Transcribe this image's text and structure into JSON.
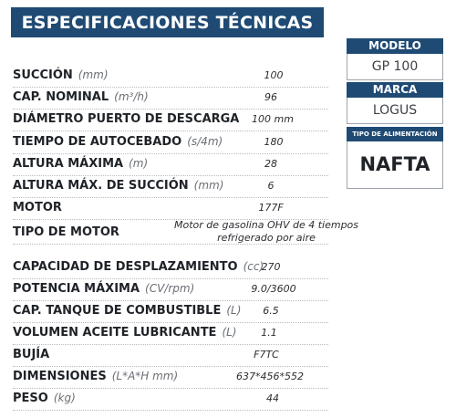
{
  "header": {
    "title": "ESPECIFICACIONES TÉCNICAS"
  },
  "specs": [
    {
      "label": "SUCCIÓN",
      "unit": "(mm)",
      "value": "100"
    },
    {
      "label": "CAP. NOMINAL",
      "unit": "(m³/h)",
      "value": "96"
    },
    {
      "label": "DIÁMETRO PUERTO DE DESCARGA",
      "unit": "",
      "value": "100 mm"
    },
    {
      "label": "TIEMPO DE AUTOCEBADO",
      "unit": "(s/4m)",
      "value": "180"
    },
    {
      "label": "ALTURA MÁXIMA",
      "unit": "(m)",
      "value": "28"
    },
    {
      "label": "ALTURA MÁX. DE SUCCIÓN",
      "unit": "(mm)",
      "value": "6"
    },
    {
      "label": "MOTOR",
      "unit": "",
      "value": "177F"
    },
    {
      "label": "TIPO DE MOTOR",
      "unit": "",
      "value": "Motor de gasolina OHV de 4 tiempos refrigerado por aire"
    },
    {
      "label": "CAPACIDAD DE DESPLAZAMIENTO",
      "unit": "(cc)",
      "value": "270"
    },
    {
      "label": "POTENCIA MÁXIMA",
      "unit": "(CV/rpm)",
      "value": "9.0/3600"
    },
    {
      "label": "CAP. TANQUE DE COMBUSTIBLE",
      "unit": "(L)",
      "value": "6.5"
    },
    {
      "label": "VOLUMEN ACEITE LUBRICANTE",
      "unit": "(L)",
      "value": "1.1"
    },
    {
      "label": "BUJÍA",
      "unit": "",
      "value": "F7TC"
    },
    {
      "label": "DIMENSIONES",
      "unit": "(L*A*H mm)",
      "value": "637*456*552"
    },
    {
      "label": "PESO",
      "unit": "(kg)",
      "value": "44"
    }
  ],
  "sidebar": {
    "model_label": "MODELO",
    "model_value": "GP 100",
    "brand_label": "MARCA",
    "brand_value": "LOGUS",
    "fuel_label": "TIPO DE ALIMENTACIÓN",
    "fuel_value": "NAFTA"
  },
  "colors": {
    "accent": "#1f4a74",
    "border": "#9fa5ac"
  }
}
